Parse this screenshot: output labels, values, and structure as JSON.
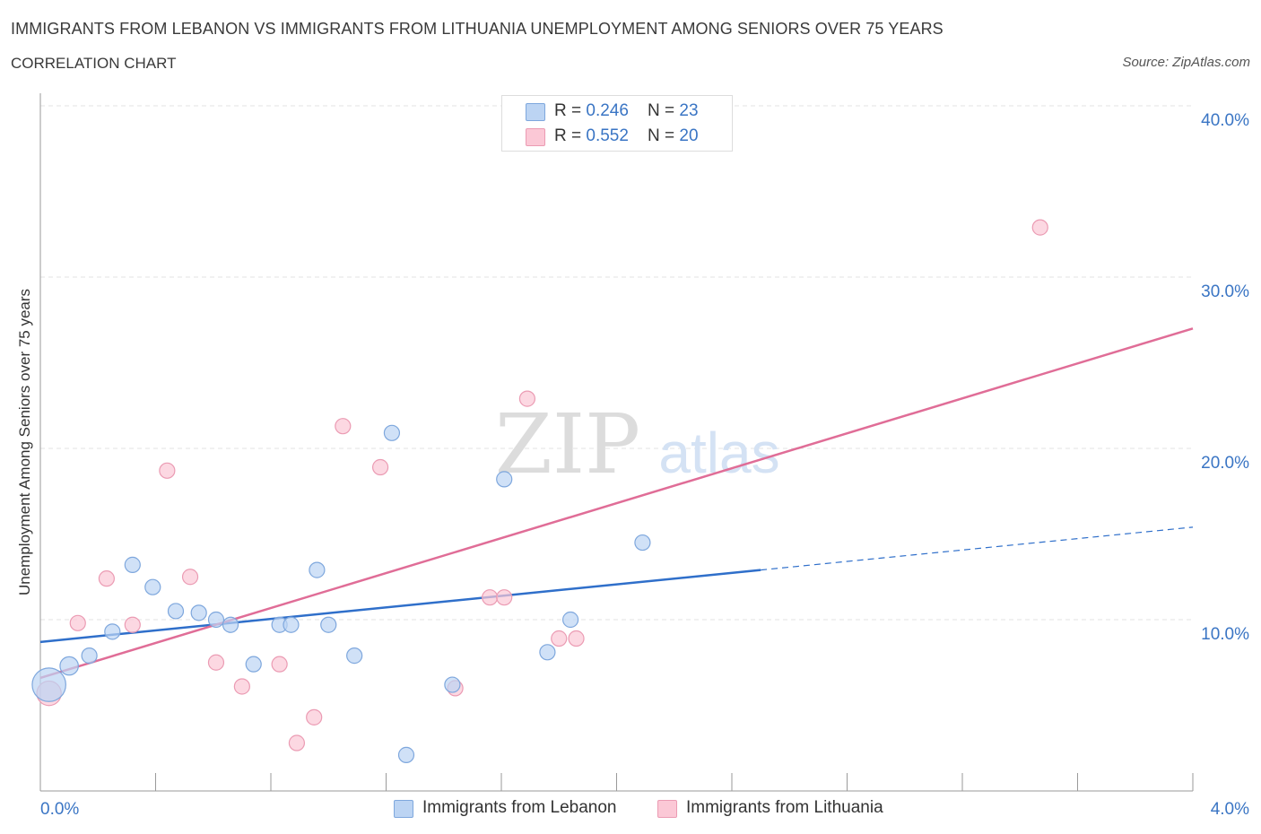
{
  "header": {
    "title": "IMMIGRANTS FROM LEBANON VS IMMIGRANTS FROM LITHUANIA UNEMPLOYMENT AMONG SENIORS OVER 75 YEARS",
    "subtitle": "CORRELATION CHART",
    "source": "Source: ZipAtlas.com"
  },
  "legend": {
    "rows": [
      {
        "r_label": "R = ",
        "r_value": "0.246",
        "n_label": "N = ",
        "n_value": "23"
      },
      {
        "r_label": "R = ",
        "r_value": "0.552",
        "n_label": "N = ",
        "n_value": "20"
      }
    ],
    "bottom": [
      "Immigrants from Lebanon",
      "Immigrants from Lithuania"
    ]
  },
  "watermark": {
    "zip": "ZIP",
    "atlas": "atlas"
  },
  "colors": {
    "blue_fill": "#bcd4f3",
    "blue_stroke": "#7ea7dd",
    "blue_line": "#2f6fca",
    "pink_fill": "#fbc8d6",
    "pink_stroke": "#eb9bb3",
    "pink_line": "#e06d97",
    "tick_label": "#3a75c4",
    "grid": "#e3e3e3"
  },
  "chart_data": {
    "type": "scatter",
    "title": "IMMIGRANTS FROM LEBANON VS IMMIGRANTS FROM LITHUANIA UNEMPLOYMENT AMONG SENIORS OVER 75 YEARS",
    "xlabel": "",
    "ylabel": "Unemployment Among Seniors over 75 years",
    "xlim": [
      0,
      4
    ],
    "ylim": [
      0,
      40
    ],
    "x_tick_labels": [
      "0.0%",
      "4.0%"
    ],
    "y_ticks": [
      10,
      20,
      30,
      40
    ],
    "y_tick_labels": [
      "10.0%",
      "20.0%",
      "30.0%",
      "40.0%"
    ],
    "grid": true,
    "series": [
      {
        "name": "Immigrants from Lebanon",
        "color": "#7ea7dd",
        "points": [
          {
            "x": 0.03,
            "y": 6.2,
            "s": 2.2
          },
          {
            "x": 0.1,
            "y": 7.3,
            "s": 1.2
          },
          {
            "x": 0.17,
            "y": 7.9,
            "s": 1
          },
          {
            "x": 0.25,
            "y": 9.3,
            "s": 1
          },
          {
            "x": 0.32,
            "y": 13.2,
            "s": 1
          },
          {
            "x": 0.39,
            "y": 11.9,
            "s": 1
          },
          {
            "x": 0.47,
            "y": 10.5,
            "s": 1
          },
          {
            "x": 0.55,
            "y": 10.4,
            "s": 1
          },
          {
            "x": 0.61,
            "y": 10.0,
            "s": 1
          },
          {
            "x": 0.66,
            "y": 9.7,
            "s": 1
          },
          {
            "x": 0.74,
            "y": 7.4,
            "s": 1
          },
          {
            "x": 0.83,
            "y": 9.7,
            "s": 1
          },
          {
            "x": 0.87,
            "y": 9.7,
            "s": 1
          },
          {
            "x": 0.96,
            "y": 12.9,
            "s": 1
          },
          {
            "x": 1.0,
            "y": 9.7,
            "s": 1
          },
          {
            "x": 1.09,
            "y": 7.9,
            "s": 1
          },
          {
            "x": 1.22,
            "y": 20.9,
            "s": 1
          },
          {
            "x": 1.27,
            "y": 2.1,
            "s": 1
          },
          {
            "x": 1.43,
            "y": 6.2,
            "s": 1
          },
          {
            "x": 1.61,
            "y": 18.2,
            "s": 1
          },
          {
            "x": 1.76,
            "y": 8.1,
            "s": 1
          },
          {
            "x": 1.84,
            "y": 10.0,
            "s": 1
          },
          {
            "x": 2.09,
            "y": 14.5,
            "s": 1
          }
        ],
        "trend": {
          "x0": 0.0,
          "y0": 8.7,
          "x1": 2.5,
          "y1": 12.9,
          "dash_to_x": 4.0,
          "dash_to_y": 15.4
        }
      },
      {
        "name": "Immigrants from Lithuania",
        "color": "#eb9bb3",
        "points": [
          {
            "x": 0.03,
            "y": 5.7,
            "s": 1.6
          },
          {
            "x": 0.13,
            "y": 9.8,
            "s": 1
          },
          {
            "x": 0.23,
            "y": 12.4,
            "s": 1
          },
          {
            "x": 0.32,
            "y": 9.7,
            "s": 1
          },
          {
            "x": 0.44,
            "y": 18.7,
            "s": 1
          },
          {
            "x": 0.52,
            "y": 12.5,
            "s": 1
          },
          {
            "x": 0.61,
            "y": 7.5,
            "s": 1
          },
          {
            "x": 0.7,
            "y": 6.1,
            "s": 1
          },
          {
            "x": 0.83,
            "y": 7.4,
            "s": 1
          },
          {
            "x": 0.89,
            "y": 2.8,
            "s": 1
          },
          {
            "x": 0.95,
            "y": 4.3,
            "s": 1
          },
          {
            "x": 1.05,
            "y": 21.3,
            "s": 1
          },
          {
            "x": 1.18,
            "y": 18.9,
            "s": 1
          },
          {
            "x": 1.44,
            "y": 6.0,
            "s": 1
          },
          {
            "x": 1.56,
            "y": 11.3,
            "s": 1
          },
          {
            "x": 1.61,
            "y": 11.3,
            "s": 1
          },
          {
            "x": 1.69,
            "y": 22.9,
            "s": 1
          },
          {
            "x": 1.8,
            "y": 8.9,
            "s": 1
          },
          {
            "x": 1.86,
            "y": 8.9,
            "s": 1
          },
          {
            "x": 3.47,
            "y": 32.9,
            "s": 1
          }
        ],
        "trend": {
          "x0": 0.0,
          "y0": 6.6,
          "x1": 4.0,
          "y1": 27.0
        }
      }
    ]
  }
}
